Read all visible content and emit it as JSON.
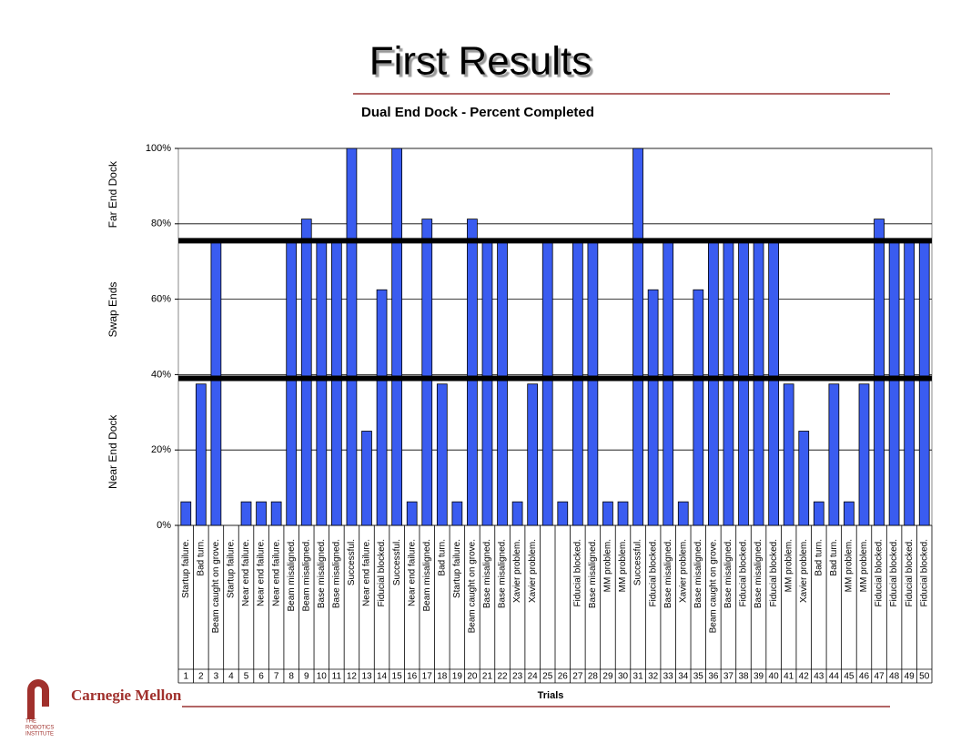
{
  "slide": {
    "title": "First Results",
    "logo_name": "Carnegie Mellon",
    "logo_sub": [
      "THE",
      "ROBOTICS",
      "INSTITUTE"
    ]
  },
  "chart_data": {
    "type": "bar",
    "title": "Dual End Dock - Percent Completed",
    "x_label": "Trials",
    "categories": [
      "1",
      "2",
      "3",
      "4",
      "5",
      "6",
      "7",
      "8",
      "9",
      "10",
      "11",
      "12",
      "13",
      "14",
      "15",
      "16",
      "17",
      "18",
      "19",
      "20",
      "21",
      "22",
      "23",
      "24",
      "25",
      "26",
      "27",
      "28",
      "29",
      "30",
      "31",
      "32",
      "33",
      "34",
      "35",
      "36",
      "37",
      "38",
      "39",
      "40",
      "41",
      "42",
      "43",
      "44",
      "45",
      "46",
      "47",
      "48",
      "49",
      "50"
    ],
    "outcomes": [
      "Startup failure.",
      "Bad turn.",
      "Beam caught on grove.",
      "Startup failure.",
      "Near end failure.",
      "Near end failure.",
      "Near end failure.",
      "Beam misaligned.",
      "Beam misaligned.",
      "Base misaligned.",
      "Base misaligned.",
      "Successful.",
      "Near end failure.",
      "Fiducial blocked.",
      "Successful.",
      "Near end failure.",
      "Beam misaligned.",
      "Bad turn.",
      "Startup failure.",
      "Beam caught on grove.",
      "Base misaligned.",
      "Base misaligned.",
      "Xavier problem.",
      "Xavier problem.",
      null,
      null,
      "Fiducial blocked.",
      "Base misaligned.",
      "MM problem.",
      "MM problem.",
      "Successful.",
      "Fiducial blocked.",
      "Base misaligned.",
      "Xavier problem.",
      "Base misaligned.",
      "Beam caught on grove.",
      "Base misaligned.",
      "Fiducial blocked.",
      "Base misaligned.",
      "Fiducial blocked.",
      "MM problem.",
      "Xavier problem.",
      "Bad turn.",
      "Bad turn.",
      "MM problem.",
      "MM problem.",
      "Fiducial blocked.",
      "Fiducial blocked.",
      "Fiducial blocked.",
      "Fiducial blocked."
    ],
    "values": [
      6.25,
      37.5,
      75,
      0,
      6.25,
      6.25,
      6.25,
      75,
      81.25,
      75,
      75,
      100,
      25,
      62.5,
      100,
      6.25,
      81.25,
      37.5,
      6.25,
      81.25,
      75,
      75,
      6.25,
      37.5,
      75,
      6.25,
      75,
      75,
      6.25,
      6.25,
      100,
      62.5,
      75,
      6.25,
      62.5,
      75,
      75,
      75,
      75,
      75,
      37.5,
      25,
      6.25,
      37.5,
      6.25,
      37.5,
      81.25,
      75,
      75,
      75
    ],
    "color": "#3a5cf0",
    "ylim": [
      0,
      100
    ],
    "yticks": [
      {
        "value": 0,
        "label": "0%"
      },
      {
        "value": 20,
        "label": "20%"
      },
      {
        "value": 40,
        "label": "40%"
      },
      {
        "value": 60,
        "label": "60%"
      },
      {
        "value": 80,
        "label": "80%"
      },
      {
        "value": 100,
        "label": "100%"
      }
    ],
    "grid": true,
    "thresholds": [
      39,
      75.5
    ],
    "zones": [
      "Near End Dock",
      "Swap Ends",
      "Far End Dock"
    ]
  }
}
